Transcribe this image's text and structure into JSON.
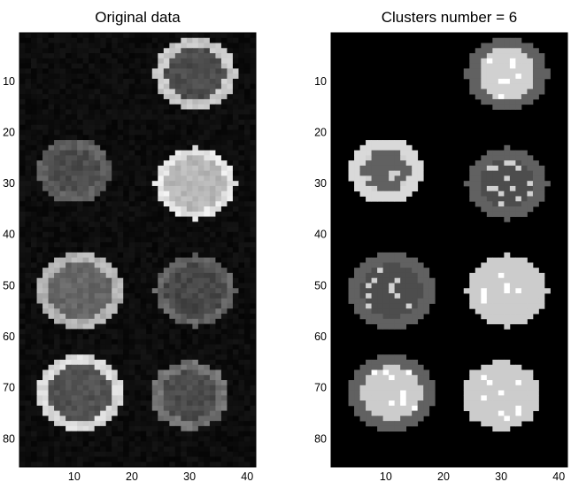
{
  "chart_data": [
    {
      "type": "heatmap",
      "title": "Original data",
      "colormap": "gray",
      "xlim": [
        0.5,
        41.5
      ],
      "ylim": [
        0.5,
        85.5
      ],
      "xticks": [
        10,
        20,
        30,
        40
      ],
      "yticks": [
        10,
        20,
        30,
        40,
        50,
        60,
        70,
        80
      ],
      "background_level": 0.05,
      "blobs": [
        {
          "cx": 31,
          "cy": 8.5,
          "r": 13.5,
          "interior": 0.3,
          "rim": 0.78
        },
        {
          "cx": 10,
          "cy": 27.5,
          "r": 12,
          "interior": 0.3,
          "rim": 0.38
        },
        {
          "cx": 31,
          "cy": 30,
          "r": 13.5,
          "interior": 0.72,
          "rim": 0.9
        },
        {
          "cx": 11,
          "cy": 51,
          "r": 14,
          "interior": 0.4,
          "rim": 0.7
        },
        {
          "cx": 31,
          "cy": 51,
          "r": 13.5,
          "interior": 0.28,
          "rim": 0.4
        },
        {
          "cx": 11,
          "cy": 71,
          "r": 14,
          "interior": 0.32,
          "rim": 0.85
        },
        {
          "cx": 30,
          "cy": 71.5,
          "r": 13,
          "interior": 0.3,
          "rim": 0.45
        }
      ]
    },
    {
      "type": "heatmap",
      "title": "Clusters number = 6",
      "colormap": "gray",
      "xlim": [
        0.5,
        41.5
      ],
      "ylim": [
        0.5,
        85.5
      ],
      "xticks": [
        10,
        20,
        30,
        40
      ],
      "yticks": [
        10,
        20,
        30,
        40,
        50,
        60,
        70,
        80
      ],
      "background_level": 0.0,
      "blobs": [
        {
          "cx": 31,
          "cy": 8.5,
          "r": 13.5,
          "interior": 0.82,
          "rim": 0.38
        },
        {
          "cx": 10,
          "cy": 27.5,
          "r": 12,
          "interior": 0.38,
          "rim": 0.85
        },
        {
          "cx": 31,
          "cy": 30,
          "r": 13.5,
          "interior": 0.3,
          "rim": 0.38
        },
        {
          "cx": 11,
          "cy": 51,
          "r": 14,
          "interior": 0.3,
          "rim": 0.38
        },
        {
          "cx": 31,
          "cy": 51,
          "r": 13.5,
          "interior": 0.8,
          "rim": 0.8
        },
        {
          "cx": 11,
          "cy": 71,
          "r": 14,
          "interior": 0.8,
          "rim": 0.38
        },
        {
          "cx": 30,
          "cy": 71.5,
          "r": 13,
          "interior": 0.8,
          "rim": 0.8
        }
      ]
    }
  ]
}
